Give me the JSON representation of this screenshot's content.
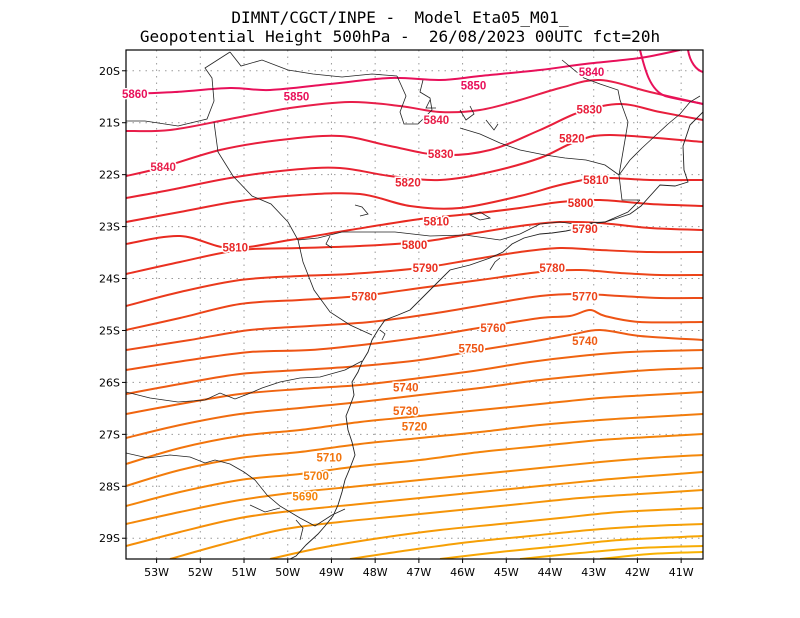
{
  "header": {
    "line1": "DIMNT/CGCT/INPE -  Model Eta05_M01_",
    "line2": "Geopotential Height 500hPa -  26/08/2023 00UTC fct=20h"
  },
  "map": {
    "lon_range": [
      -53.7,
      -40.5
    ],
    "lat_range": [
      -29.4,
      -19.6
    ],
    "lat_labels": [
      {
        "lat": -20,
        "label": "20S"
      },
      {
        "lat": -21,
        "label": "21S"
      },
      {
        "lat": -22,
        "label": "22S"
      },
      {
        "lat": -23,
        "label": "23S"
      },
      {
        "lat": -24,
        "label": "24S"
      },
      {
        "lat": -25,
        "label": "25S"
      },
      {
        "lat": -26,
        "label": "26S"
      },
      {
        "lat": -27,
        "label": "27S"
      },
      {
        "lat": -28,
        "label": "28S"
      },
      {
        "lat": -29,
        "label": "29S"
      }
    ],
    "lon_labels": [
      {
        "lon": -53,
        "label": "53W"
      },
      {
        "lon": -52,
        "label": "52W"
      },
      {
        "lon": -51,
        "label": "51W"
      },
      {
        "lon": -50,
        "label": "50W"
      },
      {
        "lon": -49,
        "label": "49W"
      },
      {
        "lon": -48,
        "label": "48W"
      },
      {
        "lon": -47,
        "label": "47W"
      },
      {
        "lon": -46,
        "label": "46W"
      },
      {
        "lon": -45,
        "label": "45W"
      },
      {
        "lon": -44,
        "label": "44W"
      },
      {
        "lon": -43,
        "label": "43W"
      },
      {
        "lon": -42,
        "label": "42W"
      },
      {
        "lon": -41,
        "label": "41W"
      }
    ],
    "contour_labels": [
      {
        "text": "5860",
        "lon": -53.5,
        "lat": -20.45,
        "color": "#e8105a"
      },
      {
        "text": "5850",
        "lon": -49.8,
        "lat": -20.5,
        "color": "#e8105a"
      },
      {
        "text": "5850",
        "lon": -45.75,
        "lat": -20.28,
        "color": "#e8105a"
      },
      {
        "text": "5840",
        "lon": -43.05,
        "lat": -20.02,
        "color": "#e8105a"
      },
      {
        "text": "5840",
        "lon": -46.6,
        "lat": -20.95,
        "color": "#e81e4a"
      },
      {
        "text": "5840",
        "lon": -52.85,
        "lat": -21.85,
        "color": "#e81e4a"
      },
      {
        "text": "5830",
        "lon": -43.1,
        "lat": -20.75,
        "color": "#e81e3c"
      },
      {
        "text": "5830",
        "lon": -46.5,
        "lat": -21.6,
        "color": "#e81e3c"
      },
      {
        "text": "5820",
        "lon": -43.5,
        "lat": -21.3,
        "color": "#e82232"
      },
      {
        "text": "5820",
        "lon": -47.25,
        "lat": -22.15,
        "color": "#e82232"
      },
      {
        "text": "5810",
        "lon": -42.95,
        "lat": -22.1,
        "color": "#e82828"
      },
      {
        "text": "5810",
        "lon": -46.6,
        "lat": -22.9,
        "color": "#e82828"
      },
      {
        "text": "5810",
        "lon": -51.2,
        "lat": -23.4,
        "color": "#e82828"
      },
      {
        "text": "5800",
        "lon": -43.3,
        "lat": -22.55,
        "color": "#e82a20"
      },
      {
        "text": "5800",
        "lon": -47.1,
        "lat": -23.35,
        "color": "#e82a20"
      },
      {
        "text": "5790",
        "lon": -43.2,
        "lat": -23.05,
        "color": "#ea3020"
      },
      {
        "text": "5790",
        "lon": -46.85,
        "lat": -23.8,
        "color": "#ea3020"
      },
      {
        "text": "5780",
        "lon": -43.95,
        "lat": -23.8,
        "color": "#ea3a1c"
      },
      {
        "text": "5780",
        "lon": -48.25,
        "lat": -24.35,
        "color": "#ea3a1c"
      },
      {
        "text": "5770",
        "lon": -43.2,
        "lat": -24.35,
        "color": "#ec4418"
      },
      {
        "text": "5760",
        "lon": -45.3,
        "lat": -24.95,
        "color": "#ec4c18"
      },
      {
        "text": "5750",
        "lon": -45.8,
        "lat": -25.35,
        "color": "#ee5414"
      },
      {
        "text": "5740",
        "lon": -43.2,
        "lat": -25.2,
        "color": "#ee5c14"
      },
      {
        "text": "5740",
        "lon": -47.3,
        "lat": -26.1,
        "color": "#ee5c14"
      },
      {
        "text": "5730",
        "lon": -47.3,
        "lat": -26.55,
        "color": "#f06410"
      },
      {
        "text": "5720",
        "lon": -47.1,
        "lat": -26.85,
        "color": "#f06c10"
      },
      {
        "text": "5710",
        "lon": -49.05,
        "lat": -27.45,
        "color": "#f2740c"
      },
      {
        "text": "5700",
        "lon": -49.35,
        "lat": -27.8,
        "color": "#f27c0c"
      },
      {
        "text": "5690",
        "lon": -49.6,
        "lat": -28.2,
        "color": "#f4840a"
      }
    ]
  }
}
